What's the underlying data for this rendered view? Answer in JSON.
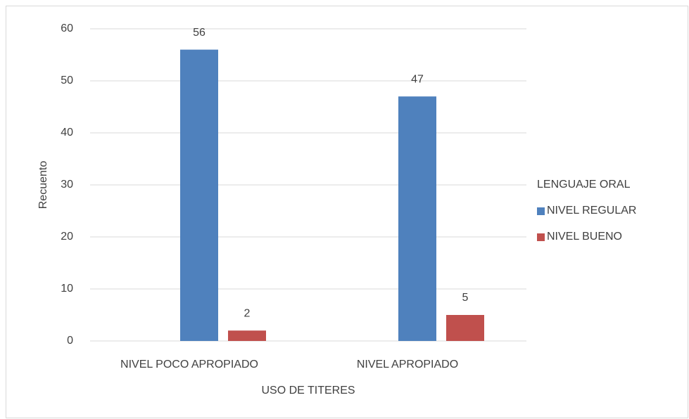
{
  "chart_data": {
    "type": "bar",
    "x_label": "USO DE TITERES",
    "y_label": "Recuento",
    "legend_title": "LENGUAJE ORAL",
    "legend_position": "right",
    "grid": true,
    "categories": [
      "NIVEL POCO APROPIADO",
      "NIVEL APROPIADO"
    ],
    "series": [
      {
        "name": "NIVEL REGULAR",
        "color": "#4f81bd",
        "values": [
          56,
          47
        ]
      },
      {
        "name": "NIVEL BUENO",
        "color": "#c0504d",
        "values": [
          2,
          5
        ]
      }
    ],
    "ylim": [
      0,
      60
    ],
    "yticks": [
      0,
      10,
      20,
      30,
      40,
      50,
      60
    ]
  }
}
